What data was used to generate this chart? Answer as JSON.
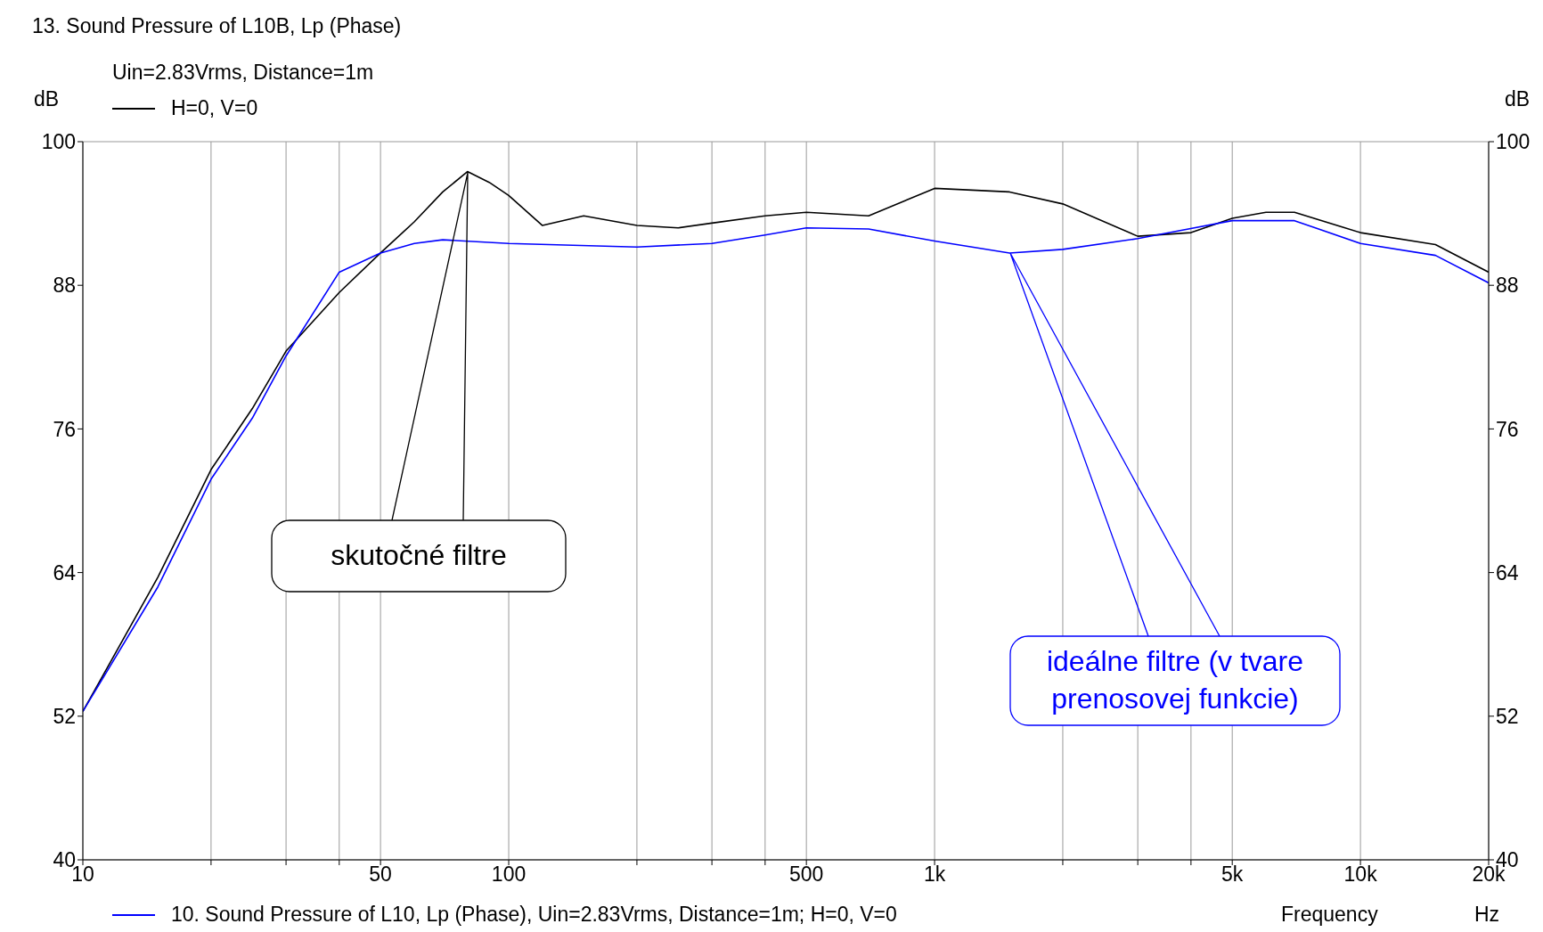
{
  "chart_data": {
    "type": "line",
    "title": "13. Sound Pressure of L10B, Lp (Phase)",
    "subtitle": "Uin=2.83Vrms, Distance=1m",
    "xlabel": "Frequency",
    "ylabel": "dB",
    "y2label": "dB",
    "log": "x",
    "grid": true,
    "legend": "left",
    "marker": "none",
    "line_style": "solid",
    "xlim": [
      10,
      20000
    ],
    "xticks": [
      10,
      {
        "value": 20,
        "label": null
      },
      {
        "value": 30,
        "label": null
      },
      {
        "value": 40,
        "label": null
      },
      50,
      100,
      {
        "value": 200,
        "label": null
      },
      {
        "value": 300,
        "label": null
      },
      {
        "value": 400,
        "label": null
      },
      500,
      {
        "value": 1000,
        "label": "1k"
      },
      {
        "value": 2000,
        "label": null
      },
      {
        "value": 3000,
        "label": null
      },
      {
        "value": 4000,
        "label": null
      },
      {
        "value": 5000,
        "label": "5k"
      },
      {
        "value": 10000,
        "label": "10k"
      },
      {
        "value": 20000,
        "label": "20k"
      }
    ],
    "ylim": [
      40,
      100
    ],
    "yticks": [
      40,
      52,
      64,
      76,
      88,
      100
    ],
    "y2lim": [
      40,
      100
    ],
    "y2ticks": [
      40,
      52,
      64,
      76,
      88,
      100
    ],
    "series": [
      {
        "name": "H=0, V=0",
        "color": "#000000",
        "x": [
          10,
          15,
          20,
          25,
          30,
          40,
          50,
          60,
          70,
          80,
          90,
          100,
          120,
          150,
          200,
          250,
          300,
          400,
          500,
          700,
          1000,
          1500,
          2000,
          3000,
          4000,
          5000,
          6000,
          7000,
          10000,
          15000,
          20000
        ],
        "values": [
          52.4,
          63.6,
          72.6,
          77.7,
          82.5,
          87.4,
          90.7,
          93.3,
          95.8,
          97.5,
          96.6,
          95.5,
          93.0,
          93.8,
          93.0,
          92.8,
          93.2,
          93.8,
          94.1,
          93.8,
          96.1,
          95.8,
          94.8,
          92.1,
          92.4,
          93.6,
          94.1,
          94.1,
          92.4,
          91.4,
          89.1
        ]
      },
      {
        "name": "10. Sound Pressure of L10, Lp (Phase), Uin=2.83Vrms, Distance=1m; H=0, V=0",
        "color": "#0000ff",
        "x": [
          10,
          15,
          20,
          25,
          30,
          40,
          50,
          60,
          70,
          100,
          200,
          300,
          400,
          500,
          700,
          1000,
          1500,
          2000,
          3000,
          5000,
          7000,
          10000,
          15000,
          20000
        ],
        "values": [
          52.4,
          62.8,
          71.8,
          76.9,
          82.1,
          89.1,
          90.7,
          91.5,
          91.8,
          91.5,
          91.2,
          91.5,
          92.2,
          92.8,
          92.7,
          91.7,
          90.7,
          91.0,
          91.9,
          93.4,
          93.4,
          91.5,
          90.5,
          88.2
        ]
      }
    ],
    "annotations": [
      "skutočné filtre",
      "ideálne filtre (v tvare prenosovej funkcie)",
      "Hz"
    ]
  }
}
